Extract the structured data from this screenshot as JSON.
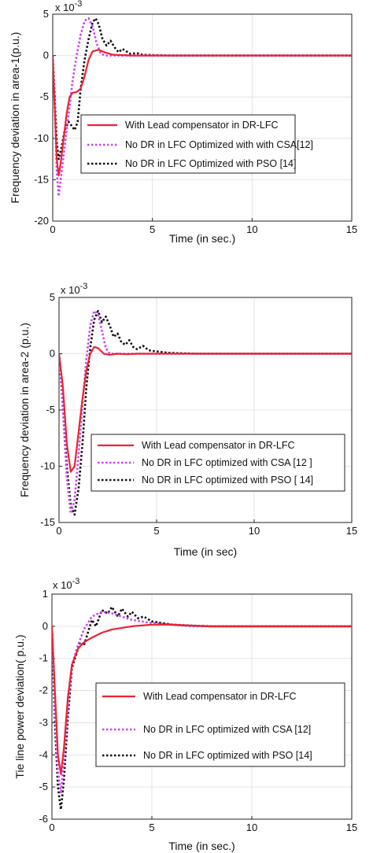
{
  "chart_data": [
    {
      "type": "line",
      "xlabel": "Time (in sec.)",
      "ylabel": "Frequency deviation in area-1(p.u.)",
      "exponent_label": "x 10-3",
      "xlim": [
        0,
        15
      ],
      "ylim": [
        -20,
        5
      ],
      "xticks": [
        "0",
        "5",
        "10",
        "15"
      ],
      "yticks": [
        "5",
        "0",
        "-5",
        "-10",
        "-15",
        "-20"
      ],
      "ytick_values": [
        5,
        0,
        -5,
        -10,
        -15,
        -20
      ],
      "xtick_values": [
        0,
        5,
        10,
        15
      ],
      "legend_position": "center-right",
      "series": [
        {
          "name": "With Lead compensator in DR-LFC",
          "color": "#ee2233",
          "style": "solid",
          "points": [
            [
              0,
              0
            ],
            [
              0.1,
              -6
            ],
            [
              0.2,
              -12.5
            ],
            [
              0.3,
              -14.5
            ],
            [
              0.4,
              -13
            ],
            [
              0.55,
              -10
            ],
            [
              0.7,
              -7
            ],
            [
              0.85,
              -5
            ],
            [
              1.0,
              -4.5
            ],
            [
              1.2,
              -4.4
            ],
            [
              1.4,
              -4
            ],
            [
              1.6,
              -2.5
            ],
            [
              1.8,
              -0.5
            ],
            [
              2.0,
              0.5
            ],
            [
              2.3,
              0.7
            ],
            [
              2.6,
              0.4
            ],
            [
              3,
              0.1
            ],
            [
              4,
              0
            ],
            [
              6,
              0
            ],
            [
              15,
              0
            ]
          ]
        },
        {
          "name": "No DR in LFC Optimized with with CSA[12]",
          "color": "#cc44ee",
          "style": "dot",
          "points": [
            [
              0,
              0
            ],
            [
              0.1,
              -6
            ],
            [
              0.2,
              -14
            ],
            [
              0.3,
              -17
            ],
            [
              0.4,
              -15
            ],
            [
              0.6,
              -11
            ],
            [
              0.8,
              -7
            ],
            [
              1.0,
              -3
            ],
            [
              1.2,
              0
            ],
            [
              1.4,
              2.5
            ],
            [
              1.6,
              4.2
            ],
            [
              1.8,
              4.5
            ],
            [
              2.0,
              3.5
            ],
            [
              2.2,
              1.5
            ],
            [
              2.4,
              0.3
            ],
            [
              2.6,
              0
            ],
            [
              3,
              0
            ],
            [
              15,
              0
            ]
          ]
        },
        {
          "name": "No DR in LFC Optimized with PSO [14]",
          "color": "#111111",
          "style": "dot",
          "points": [
            [
              0,
              0
            ],
            [
              0.1,
              -5
            ],
            [
              0.2,
              -10.5
            ],
            [
              0.3,
              -12.5
            ],
            [
              0.45,
              -11
            ],
            [
              0.6,
              -9
            ],
            [
              0.8,
              -8
            ],
            [
              0.95,
              -8.5
            ],
            [
              1.1,
              -9
            ],
            [
              1.25,
              -8
            ],
            [
              1.4,
              -4
            ],
            [
              1.6,
              -0.5
            ],
            [
              1.8,
              2
            ],
            [
              2.0,
              4
            ],
            [
              2.15,
              4.5
            ],
            [
              2.3,
              3.8
            ],
            [
              2.5,
              2
            ],
            [
              2.7,
              1.2
            ],
            [
              2.9,
              1.8
            ],
            [
              3.1,
              1
            ],
            [
              3.3,
              0.4
            ],
            [
              3.5,
              0.8
            ],
            [
              3.7,
              0.5
            ],
            [
              3.9,
              0.2
            ],
            [
              4.2,
              0.3
            ],
            [
              4.5,
              0.1
            ],
            [
              5,
              0.05
            ],
            [
              6,
              0
            ],
            [
              15,
              0
            ]
          ]
        }
      ]
    },
    {
      "type": "line",
      "xlabel": "Time (in sec)",
      "ylabel": "Frequency deviation in area-2 (p.u.)",
      "exponent_label": "x 10-3",
      "xlim": [
        0,
        15
      ],
      "ylim": [
        -15,
        5
      ],
      "xticks": [
        "0",
        "5",
        "10",
        "15"
      ],
      "yticks": [
        "5",
        "0",
        "-5",
        "-10",
        "-15"
      ],
      "ytick_values": [
        5,
        0,
        -5,
        -10,
        -15
      ],
      "xtick_values": [
        0,
        5,
        10,
        15
      ],
      "legend_position": "bottom-right",
      "series": [
        {
          "name": "With Lead compensator in DR-LFC",
          "color": "#ee2233",
          "style": "solid",
          "points": [
            [
              0,
              0
            ],
            [
              0.2,
              -3
            ],
            [
              0.4,
              -8
            ],
            [
              0.6,
              -10.5
            ],
            [
              0.8,
              -10
            ],
            [
              1.0,
              -7
            ],
            [
              1.2,
              -4
            ],
            [
              1.4,
              -1.5
            ],
            [
              1.6,
              0
            ],
            [
              1.8,
              0.6
            ],
            [
              2.0,
              0.5
            ],
            [
              2.3,
              0
            ],
            [
              2.6,
              -0.1
            ],
            [
              3,
              0
            ],
            [
              3.5,
              -0.05
            ],
            [
              4,
              0
            ],
            [
              15,
              0
            ]
          ]
        },
        {
          "name": "No DR in LFC optimized with CSA [12 ]",
          "color": "#cc44ee",
          "style": "dot",
          "points": [
            [
              0,
              0
            ],
            [
              0.2,
              -5
            ],
            [
              0.4,
              -11
            ],
            [
              0.6,
              -14.2
            ],
            [
              0.8,
              -13
            ],
            [
              1.0,
              -9
            ],
            [
              1.2,
              -4.5
            ],
            [
              1.4,
              -0.5
            ],
            [
              1.6,
              2.5
            ],
            [
              1.8,
              3.8
            ],
            [
              2.0,
              3.5
            ],
            [
              2.2,
              2
            ],
            [
              2.4,
              0.5
            ],
            [
              2.6,
              0
            ],
            [
              3,
              0
            ],
            [
              15,
              0
            ]
          ]
        },
        {
          "name": "No DR in LFC optimized with PSO [ 14]",
          "color": "#111111",
          "style": "dot",
          "points": [
            [
              0,
              0
            ],
            [
              0.2,
              -4.5
            ],
            [
              0.4,
              -10
            ],
            [
              0.6,
              -13.5
            ],
            [
              0.8,
              -14.3
            ],
            [
              1.0,
              -12
            ],
            [
              1.2,
              -8
            ],
            [
              1.4,
              -3
            ],
            [
              1.6,
              0.5
            ],
            [
              1.8,
              3
            ],
            [
              2.0,
              3.8
            ],
            [
              2.2,
              2.8
            ],
            [
              2.4,
              3.3
            ],
            [
              2.6,
              2.5
            ],
            [
              2.8,
              1.5
            ],
            [
              3.0,
              1.8
            ],
            [
              3.2,
              1
            ],
            [
              3.4,
              0.8
            ],
            [
              3.6,
              1.2
            ],
            [
              3.8,
              0.6
            ],
            [
              4.0,
              0.4
            ],
            [
              4.3,
              0.7
            ],
            [
              4.6,
              0.3
            ],
            [
              5,
              0.2
            ],
            [
              5.5,
              0.1
            ],
            [
              6,
              0.05
            ],
            [
              7,
              0
            ],
            [
              15,
              0
            ]
          ]
        }
      ]
    },
    {
      "type": "line",
      "xlabel": "Time (in sec.)",
      "ylabel": "Tie line power deviation( p.u.)",
      "exponent_label": "x 10-3",
      "xlim": [
        0,
        15
      ],
      "ylim": [
        -6,
        1
      ],
      "xticks": [
        "0",
        "5",
        "10",
        "15"
      ],
      "yticks": [
        "1",
        "0",
        "-1",
        "-2",
        "-3",
        "-4",
        "-5",
        "-6"
      ],
      "ytick_values": [
        1,
        0,
        -1,
        -2,
        -3,
        -4,
        -5,
        -6
      ],
      "xtick_values": [
        0,
        5,
        10,
        15
      ],
      "legend_position": "bottom-right",
      "series": [
        {
          "name": "With Lead compensator in DR-LFC",
          "color": "#ee2233",
          "style": "solid",
          "points": [
            [
              0,
              0
            ],
            [
              0.15,
              -2
            ],
            [
              0.3,
              -4
            ],
            [
              0.45,
              -4.6
            ],
            [
              0.6,
              -3.8
            ],
            [
              0.8,
              -2.2
            ],
            [
              1.0,
              -1.2
            ],
            [
              1.3,
              -0.7
            ],
            [
              1.6,
              -0.5
            ],
            [
              2,
              -0.35
            ],
            [
              2.5,
              -0.2
            ],
            [
              3,
              -0.1
            ],
            [
              3.5,
              -0.05
            ],
            [
              4,
              0
            ],
            [
              5,
              0.05
            ],
            [
              6,
              0.05
            ],
            [
              7,
              0.02
            ],
            [
              8,
              0
            ],
            [
              15,
              0
            ]
          ]
        },
        {
          "name": "No DR in LFC optimized with CSA [12]",
          "color": "#cc44ee",
          "style": "dot",
          "points": [
            [
              0,
              0
            ],
            [
              0.15,
              -2.5
            ],
            [
              0.3,
              -4.5
            ],
            [
              0.45,
              -5.2
            ],
            [
              0.6,
              -4.2
            ],
            [
              0.8,
              -2.5
            ],
            [
              1.0,
              -1.2
            ],
            [
              1.3,
              -0.6
            ],
            [
              1.6,
              -0.1
            ],
            [
              2,
              0.3
            ],
            [
              2.5,
              0.45
            ],
            [
              3,
              0.4
            ],
            [
              3.5,
              0.3
            ],
            [
              4,
              0.2
            ],
            [
              5,
              0.1
            ],
            [
              6,
              0.05
            ],
            [
              7,
              0
            ],
            [
              15,
              0
            ]
          ]
        },
        {
          "name": "No DR in LFC optimized with PSO [14]",
          "color": "#111111",
          "style": "dot",
          "points": [
            [
              0,
              0
            ],
            [
              0.15,
              -3
            ],
            [
              0.3,
              -5
            ],
            [
              0.45,
              -5.7
            ],
            [
              0.6,
              -4.8
            ],
            [
              0.8,
              -2.8
            ],
            [
              1.0,
              -1.3
            ],
            [
              1.2,
              -0.9
            ],
            [
              1.4,
              -0.5
            ],
            [
              1.6,
              -0.6
            ],
            [
              1.8,
              -0.2
            ],
            [
              2.0,
              0.2
            ],
            [
              2.2,
              0
            ],
            [
              2.5,
              0.5
            ],
            [
              2.8,
              0.4
            ],
            [
              3.0,
              0.6
            ],
            [
              3.3,
              0.3
            ],
            [
              3.5,
              0.55
            ],
            [
              3.8,
              0.3
            ],
            [
              4.0,
              0.45
            ],
            [
              4.3,
              0.25
            ],
            [
              4.6,
              0.3
            ],
            [
              5,
              0.15
            ],
            [
              5.5,
              0.1
            ],
            [
              6,
              0.05
            ],
            [
              7,
              0.02
            ],
            [
              8,
              0
            ],
            [
              15,
              0
            ]
          ]
        }
      ]
    }
  ]
}
